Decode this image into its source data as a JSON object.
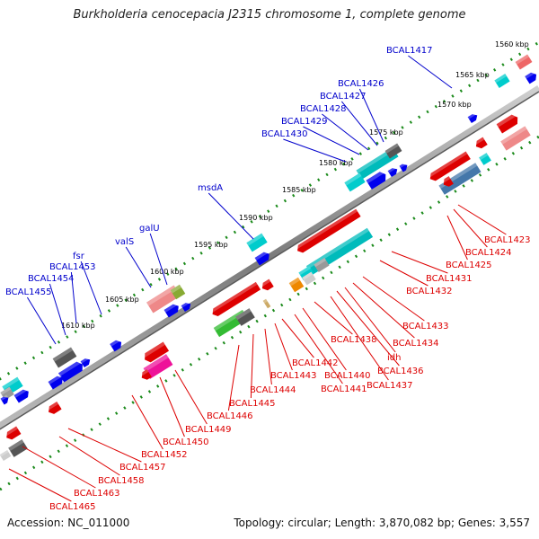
{
  "title": "Burkholderia cenocepacia J2315 chromosome 1, complete genome",
  "footer": {
    "accession": "Accession: NC_011000",
    "summary": "Topology: circular; Length: 3,870,082 bp; Genes: 3,557"
  },
  "colors": {
    "forward_label": "#0000cc",
    "reverse_label": "#dd0000",
    "backbone": "#8c8c8c",
    "dotted_ring": "#1a8a1a"
  },
  "ticks": [
    "1560 kbp",
    "1565 kbp",
    "1570 kbp",
    "1575 kbp",
    "1580 kbp",
    "1585 kbp",
    "1590 kbp",
    "1595 kbp",
    "1600 kbp",
    "1605 kbp",
    "1610 kbp"
  ],
  "forward_genes": [
    "BCAL1417",
    "BCAL1426",
    "BCAL1427",
    "BCAL1428",
    "BCAL1429",
    "BCAL1430",
    "msdA",
    "galU",
    "valS",
    "fsr",
    "BCAL1453",
    "BCAL1454",
    "BCAL1455"
  ],
  "reverse_genes": [
    "BCAL1423",
    "BCAL1424",
    "BCAL1425",
    "BCAL1431",
    "BCAL1432",
    "BCAL1433",
    "BCAL1434",
    "idh",
    "BCAL1436",
    "BCAL1437",
    "BCAL1438",
    "BCAL1440",
    "BCAL1441",
    "BCAL1442",
    "BCAL1443",
    "BCAL1444",
    "BCAL1445",
    "BCAL1446",
    "BCAL1449",
    "BCAL1450",
    "BCAL1452",
    "BCAL1457",
    "BCAL1458",
    "BCAL1463",
    "BCAL1465"
  ]
}
